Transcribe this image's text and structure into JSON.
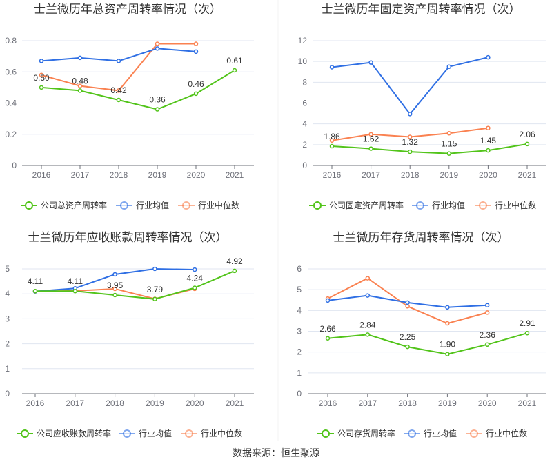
{
  "colors": {
    "company": "#52c41a",
    "industry_avg": "#2f6fe4",
    "industry_median": "#fa8150"
  },
  "footer": "数据来源：恒生聚源",
  "chart_data": [
    {
      "type": "line",
      "title": "士兰微历年总资产周转率情况（次）",
      "categories": [
        "2016",
        "2017",
        "2018",
        "2019",
        "2020",
        "2021"
      ],
      "ylim": [
        0,
        0.8
      ],
      "yticks": [
        "0",
        "0.2",
        "0.4",
        "0.6",
        "0.8"
      ],
      "legend_position": "bottom",
      "series": [
        {
          "name": "公司总资产周转率",
          "values": [
            0.5,
            0.48,
            0.42,
            0.36,
            0.46,
            0.61
          ],
          "labels": [
            "0.50",
            "0.48",
            "0.42",
            "0.36",
            "0.46",
            "0.61"
          ]
        },
        {
          "name": "行业均值",
          "values": [
            0.67,
            0.69,
            0.67,
            0.75,
            0.73,
            null
          ]
        },
        {
          "name": "行业中位数",
          "values": [
            0.58,
            0.51,
            0.48,
            0.78,
            0.78,
            null
          ]
        }
      ]
    },
    {
      "type": "line",
      "title": "士兰微历年固定资产周转率情况（次）",
      "categories": [
        "2016",
        "2017",
        "2018",
        "2019",
        "2020",
        "2021"
      ],
      "ylim": [
        0,
        12
      ],
      "yticks": [
        "0",
        "2",
        "4",
        "6",
        "8",
        "10",
        "12"
      ],
      "legend_position": "bottom",
      "series": [
        {
          "name": "公司固定资产周转率",
          "values": [
            1.86,
            1.62,
            1.32,
            1.15,
            1.45,
            2.06
          ],
          "labels": [
            "1.86",
            "1.62",
            "1.32",
            "1.15",
            "1.45",
            "2.06"
          ]
        },
        {
          "name": "行业均值",
          "values": [
            9.45,
            9.9,
            4.95,
            9.5,
            10.4,
            null
          ]
        },
        {
          "name": "行业中位数",
          "values": [
            2.4,
            3.0,
            2.75,
            3.1,
            3.6,
            null
          ]
        }
      ]
    },
    {
      "type": "line",
      "title": "士兰微历年应收账款周转率情况（次）",
      "categories": [
        "2016",
        "2017",
        "2018",
        "2019",
        "2020",
        "2021"
      ],
      "ylim": [
        0,
        5
      ],
      "yticks": [
        "0",
        "1",
        "2",
        "3",
        "4",
        "5"
      ],
      "legend_position": "bottom",
      "series": [
        {
          "name": "公司应收账款周转率",
          "values": [
            4.11,
            4.11,
            3.95,
            3.79,
            4.24,
            4.92
          ],
          "labels": [
            "4.11",
            "4.11",
            "3.95",
            "3.79",
            "4.24",
            "4.92"
          ]
        },
        {
          "name": "行业均值",
          "values": [
            4.1,
            4.22,
            4.78,
            5.0,
            4.97,
            null
          ]
        },
        {
          "name": "行业中位数",
          "values": [
            4.1,
            4.12,
            4.2,
            3.8,
            4.2,
            null
          ]
        }
      ]
    },
    {
      "type": "line",
      "title": "士兰微历年存货周转率情况（次）",
      "categories": [
        "2016",
        "2017",
        "2018",
        "2019",
        "2020",
        "2021"
      ],
      "ylim": [
        0,
        6
      ],
      "yticks": [
        "0",
        "1",
        "2",
        "3",
        "4",
        "5",
        "6"
      ],
      "legend_position": "bottom",
      "series": [
        {
          "name": "公司存货周转率",
          "values": [
            2.66,
            2.84,
            2.25,
            1.9,
            2.36,
            2.91
          ],
          "labels": [
            "2.66",
            "2.84",
            "2.25",
            "1.90",
            "2.36",
            "2.91"
          ]
        },
        {
          "name": "行业均值",
          "values": [
            4.48,
            4.72,
            4.38,
            4.15,
            4.25,
            null
          ]
        },
        {
          "name": "行业中位数",
          "values": [
            4.57,
            5.55,
            4.2,
            3.38,
            3.9,
            null
          ]
        }
      ]
    }
  ]
}
